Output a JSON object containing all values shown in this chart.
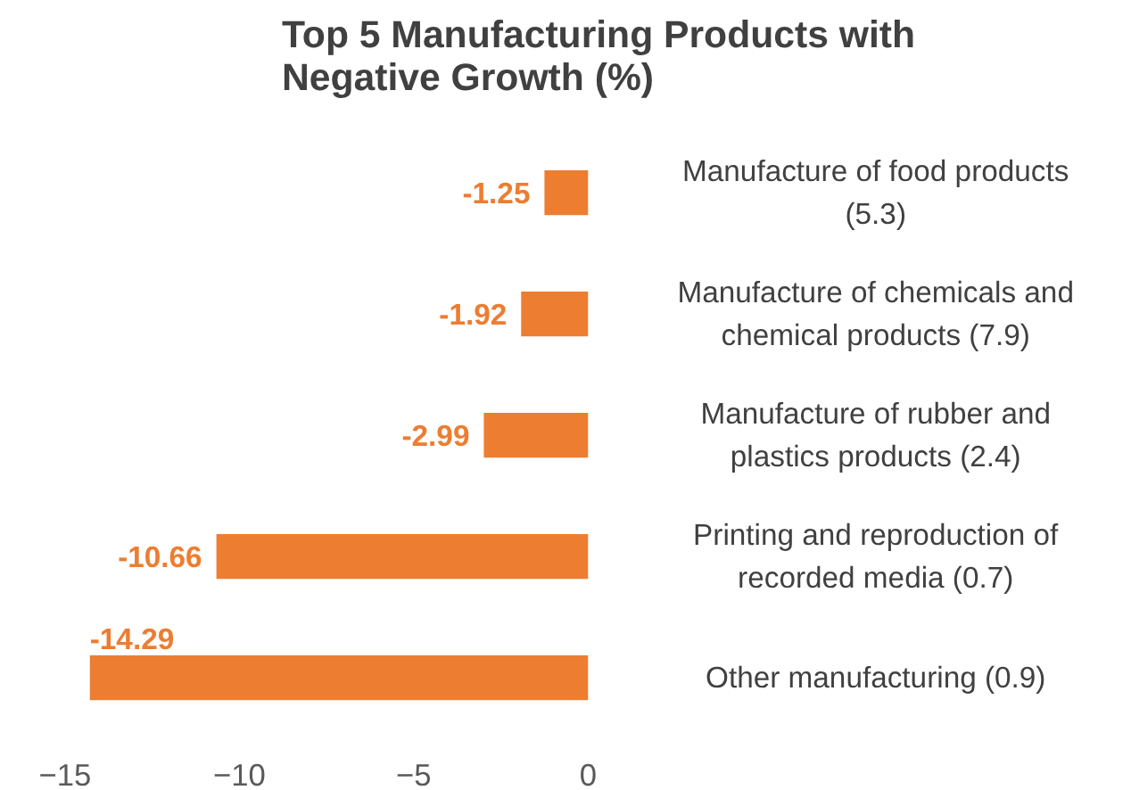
{
  "chart_data": {
    "type": "bar",
    "orientation": "horizontal",
    "title": "Top 5 Manufacturing Products with Negative Growth (%)",
    "categories": [
      "Manufacture of food products (5.3)",
      "Manufacture of chemicals and chemical products (7.9)",
      "Manufacture of rubber and plastics products (2.4)",
      "Printing and reproduction of recorded media (0.7)",
      "Other manufacturing (0.9)"
    ],
    "values": [
      -1.25,
      -1.92,
      -2.99,
      -10.66,
      -14.29
    ],
    "color": "#ed7d31",
    "data_labels": true,
    "xlim": [
      -15,
      0
    ],
    "xticks": [
      -15,
      -10,
      -5,
      0
    ],
    "grid": false
  }
}
